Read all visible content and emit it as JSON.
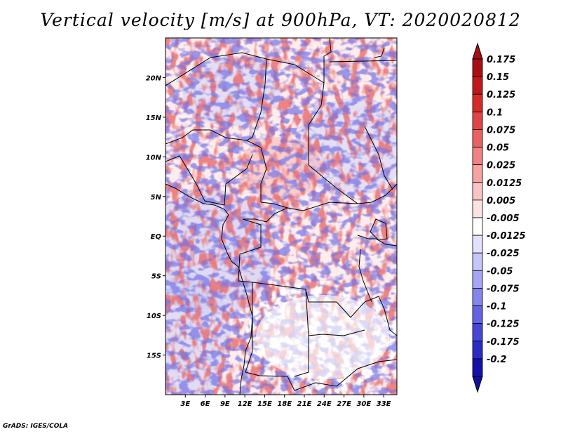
{
  "title": "Vertical velocity [m/s] at 900hPa, VT: 2020020812",
  "footer": "GrADS: IGES/COLA",
  "map": {
    "lon_range": [
      0,
      35
    ],
    "lat_range": [
      -20,
      25
    ],
    "lon_ticks": [
      {
        "value": 3,
        "label": "3E"
      },
      {
        "value": 6,
        "label": "6E"
      },
      {
        "value": 9,
        "label": "9E"
      },
      {
        "value": 12,
        "label": "12E"
      },
      {
        "value": 15,
        "label": "15E"
      },
      {
        "value": 18,
        "label": "18E"
      },
      {
        "value": 21,
        "label": "21E"
      },
      {
        "value": 24,
        "label": "24E"
      },
      {
        "value": 27,
        "label": "27E"
      },
      {
        "value": 30,
        "label": "30E"
      },
      {
        "value": 33,
        "label": "33E"
      }
    ],
    "lat_ticks": [
      {
        "value": 20,
        "label": "20N"
      },
      {
        "value": 15,
        "label": "15N"
      },
      {
        "value": 10,
        "label": "10N"
      },
      {
        "value": 5,
        "label": "5N"
      },
      {
        "value": 0,
        "label": "EQ"
      },
      {
        "value": -5,
        "label": "5S"
      },
      {
        "value": -10,
        "label": "10S"
      },
      {
        "value": -15,
        "label": "15S"
      }
    ]
  },
  "colorbar": {
    "levels": [
      {
        "label": "0.175",
        "color": "#a50f15"
      },
      {
        "label": "0.15",
        "color": "#c0181c"
      },
      {
        "label": "0.125",
        "color": "#d42a2a"
      },
      {
        "label": "0.1",
        "color": "#e04545"
      },
      {
        "label": "0.075",
        "color": "#e86262"
      },
      {
        "label": "0.05",
        "color": "#f08282"
      },
      {
        "label": "0.025",
        "color": "#f6a3a3"
      },
      {
        "label": "0.0125",
        "color": "#fac4c4"
      },
      {
        "label": "0.005",
        "color": "#fde2e2"
      },
      {
        "label": "-0.005",
        "color": "#ffffff"
      },
      {
        "label": "-0.0125",
        "color": "#e2e2fd"
      },
      {
        "label": "-0.025",
        "color": "#c6c6fa"
      },
      {
        "label": "-0.05",
        "color": "#a6a6f4"
      },
      {
        "label": "-0.075",
        "color": "#8585ec"
      },
      {
        "label": "-0.1",
        "color": "#6464e2"
      },
      {
        "label": "-0.125",
        "color": "#4646d6"
      },
      {
        "label": "-0.175",
        "color": "#2b2bc2"
      },
      {
        "label": "-0.2",
        "color": "#1212a6"
      }
    ],
    "top_color": "#a50f15",
    "bottom_color": "#10109a"
  }
}
